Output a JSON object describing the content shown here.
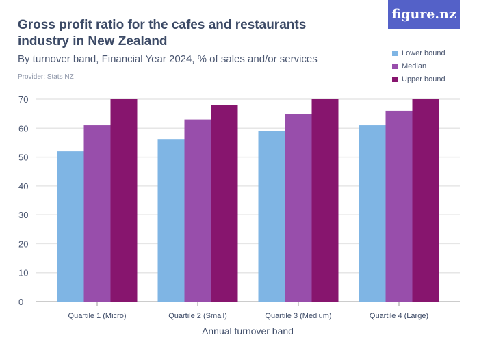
{
  "header": {
    "title": "Gross profit ratio for the cafes and restaurants industry in New Zealand",
    "subtitle": "By turnover band, Financial Year 2024, % of sales and/or services",
    "provider": "Provider: Stats NZ",
    "logo": "figure.nz"
  },
  "chart_data": {
    "type": "bar",
    "title": "Gross profit ratio for the cafes and restaurants industry in New Zealand",
    "xlabel": "Annual turnover band",
    "ylabel": "",
    "categories": [
      "Quartile 1 (Micro)",
      "Quartile 2 (Small)",
      "Quartile 3 (Medium)",
      "Quartile 4 (Large)"
    ],
    "series": [
      {
        "name": "Lower bound",
        "color": "#7fb5e4",
        "values": [
          52,
          56,
          59,
          61
        ]
      },
      {
        "name": "Median",
        "color": "#984eab",
        "values": [
          61,
          63,
          65,
          66
        ]
      },
      {
        "name": "Upper bound",
        "color": "#87156e",
        "values": [
          70,
          68,
          70,
          70
        ]
      }
    ],
    "ylim": [
      0,
      70
    ],
    "yticks": [
      "0",
      "10",
      "20",
      "30",
      "40",
      "50",
      "60",
      "70"
    ],
    "grid": true,
    "legend": "top-right"
  }
}
